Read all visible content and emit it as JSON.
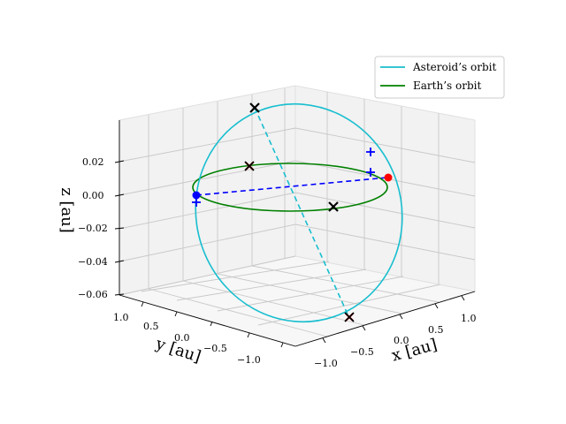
{
  "chart_data": {
    "type": "line",
    "projection": "3d",
    "title": "",
    "axes": {
      "x": {
        "label": "x [au]",
        "ticks": [
          -1.0,
          -0.5,
          0.0,
          0.5,
          1.0
        ],
        "tick_labels": [
          "−1.0",
          "−0.5",
          "0.0",
          "0.5",
          "1.0"
        ],
        "range": [
          -1.1,
          1.1
        ]
      },
      "y": {
        "label": "y [au]",
        "ticks": [
          1.0,
          0.5,
          0.0,
          -0.5,
          -1.0
        ],
        "tick_labels": [
          "1.0",
          "0.5",
          "0.0",
          "−0.5",
          "−1.0"
        ],
        "range": [
          -1.1,
          1.1
        ]
      },
      "z": {
        "label": "z [au]",
        "ticks": [
          0.02,
          0.0,
          -0.02,
          -0.04,
          -0.06
        ],
        "tick_labels": [
          "0.02",
          "0.00",
          "−0.02",
          "−0.04",
          "−0.06"
        ],
        "range": [
          -0.06,
          0.04
        ]
      }
    },
    "grid": true,
    "legend": {
      "position": "top-right"
    },
    "series": [
      {
        "name": "Asteroid’s orbit",
        "color": "#17becf",
        "style": "solid"
      },
      {
        "name": "Earth’s orbit",
        "color": "#008000",
        "style": "solid"
      }
    ],
    "markers": {
      "asteroid_node_line_color": "#17becf",
      "earth_line_color": "#0000ff",
      "red_dot_color": "#ff0000",
      "blue_dot_color": "#0000ff"
    }
  }
}
